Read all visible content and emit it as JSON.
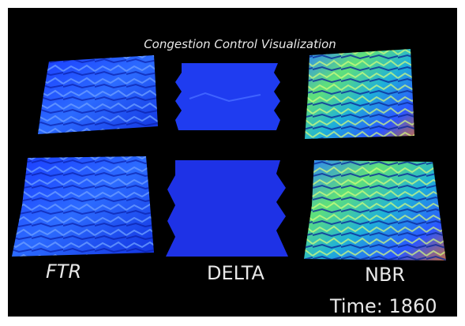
{
  "title": "Congestion Control Visualization",
  "panels": {
    "ftr": "FTR",
    "delta": "DELTA",
    "nbr": "NBR"
  },
  "time": "Time: 1860"
}
